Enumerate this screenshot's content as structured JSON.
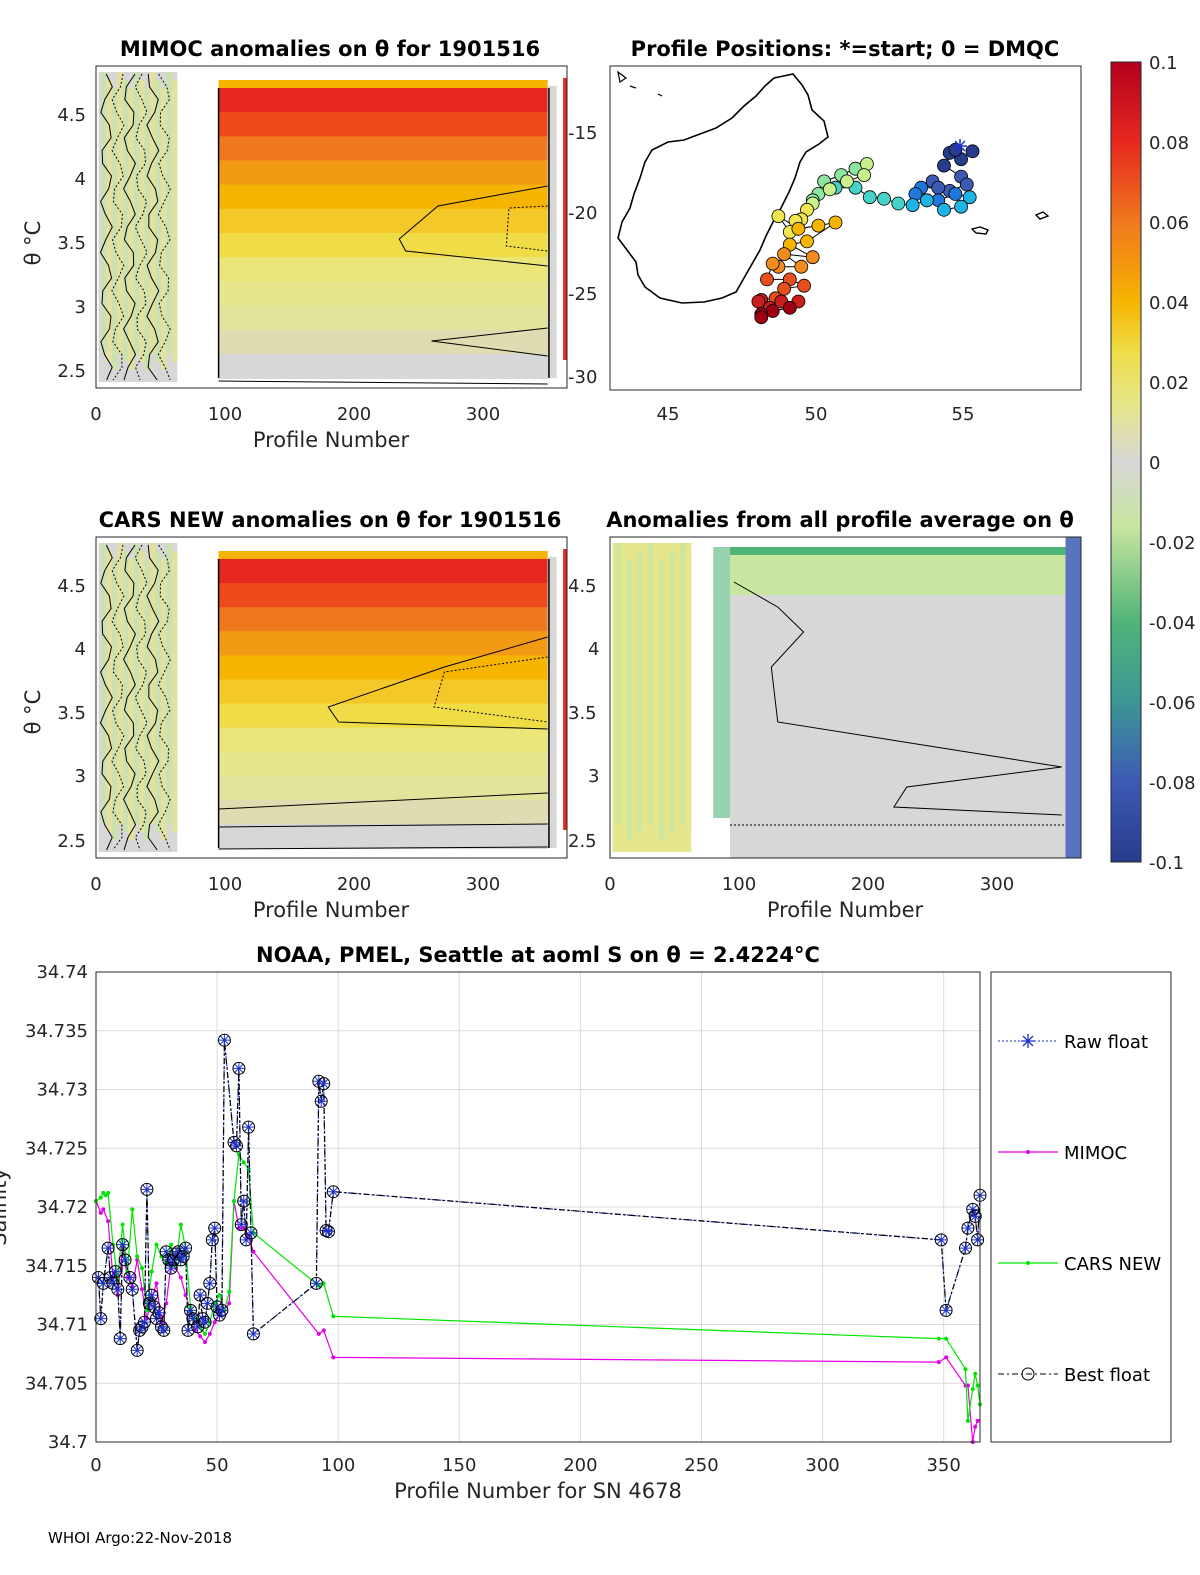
{
  "footer": "WHOI Argo:22-Nov-2018",
  "colorbar": {
    "ticks": [
      "0.1",
      "0.08",
      "0.06",
      "0.04",
      "0.02",
      "0",
      "-0.02",
      "-0.04",
      "-0.06",
      "-0.08",
      "-0.1"
    ],
    "colors": {
      "dark_red": "#b4001e",
      "red": "#e6281e",
      "orange": "#f0781e",
      "amber": "#f5b400",
      "yellow": "#f0dc46",
      "pale_yellow": "#e6e68c",
      "gray": "#d7d7d7",
      "pale_green": "#c8e6a0",
      "green": "#50b478",
      "teal": "#3c9696",
      "blue": "#3c5ab4",
      "navy": "#283c8c"
    }
  },
  "chart_data": [
    {
      "id": "mimoc_anomaly",
      "type": "heatmap",
      "title": "MIMOC anomalies on θ  for 1901516",
      "xlabel": "Profile Number",
      "ylabel": "θ °C",
      "xticks": [
        "0",
        "100",
        "200",
        "300"
      ],
      "yticks": [
        "4.5",
        "4",
        "3.5",
        "3",
        "2.5"
      ],
      "xlim": [
        0,
        365
      ],
      "ylim": [
        2.35,
        4.82
      ]
    },
    {
      "id": "profile_positions",
      "type": "scatter",
      "title": "Profile Positions: *=start; 0 = DMQC",
      "xticks": [
        "45",
        "50",
        "55"
      ],
      "yticks": [
        "-15",
        "-20",
        "-25",
        "-30"
      ],
      "xlim": [
        42.3,
        58.8
      ],
      "ylim": [
        -31,
        -10.5
      ],
      "track_lon": [
        55.0,
        54.6,
        54.2,
        54.4,
        54.0,
        54.6,
        54.8,
        54.2,
        53.6,
        53.8,
        53.2,
        53.0,
        53.4,
        53.8,
        54.4,
        54.9,
        54.6,
        54.0,
        53.4,
        52.9,
        52.4,
        51.9,
        51.4,
        50.9,
        50.2,
        49.6,
        49.4,
        49.8,
        50.4,
        50.9,
        51.3,
        51.2,
        50.6,
        50.0,
        49.4,
        49.2,
        49.0,
        48.8,
        48.6,
        48.2,
        48.9,
        49.6,
        50.2,
        49.2,
        48.6,
        49.4,
        48.4,
        49.0,
        48.2,
        48.0,
        47.8,
        48.6,
        49.1,
        48.4,
        48.1,
        47.6,
        47.5,
        47.9,
        48.3,
        48.9,
        48.6,
        48.0,
        47.6,
        47.6
      ],
      "track_lat": [
        -15.9,
        -16.4,
        -16.0,
        -15.8,
        -16.8,
        -17.5,
        -18.0,
        -18.4,
        -17.8,
        -18.2,
        -18.2,
        -18.6,
        -19.0,
        -19.0,
        -18.6,
        -18.8,
        -19.4,
        -19.6,
        -19.0,
        -19.3,
        -19.2,
        -18.9,
        -18.8,
        -18.2,
        -18.2,
        -18.6,
        -19.0,
        -17.8,
        -17.4,
        -17.0,
        -16.7,
        -17.4,
        -17.8,
        -18.3,
        -19.2,
        -19.6,
        -20.2,
        -20.3,
        -21.0,
        -20.0,
        -20.8,
        -20.6,
        -20.4,
        -21.6,
        -21.8,
        -22.6,
        -22.4,
        -23.2,
        -23.2,
        -23.0,
        -24.0,
        -24.0,
        -24.4,
        -24.6,
        -25.2,
        -25.3,
        -25.4,
        -25.8,
        -25.4,
        -25.4,
        -25.8,
        -26.0,
        -26.2,
        -26.4
      ]
    },
    {
      "id": "cars_anomaly",
      "type": "heatmap",
      "title": "CARS NEW anomalies on θ for 1901516",
      "xlabel": "Profile Number",
      "ylabel": "θ °C",
      "xticks": [
        "0",
        "100",
        "200",
        "300"
      ],
      "yticks": [
        "4.5",
        "4",
        "3.5",
        "3",
        "2.5"
      ],
      "xlim": [
        0,
        365
      ],
      "ylim": [
        2.35,
        4.82
      ]
    },
    {
      "id": "profile_average_anomaly",
      "type": "heatmap",
      "title": "Anomalies from all profile average on θ",
      "xlabel": "Profile Number",
      "xticks": [
        "0",
        "100",
        "200",
        "300"
      ],
      "yticks": [
        "4.5",
        "4",
        "3.5",
        "3",
        "2.5"
      ],
      "xlim": [
        0,
        365
      ],
      "ylim": [
        2.35,
        4.82
      ]
    },
    {
      "id": "salinity_theta",
      "type": "line",
      "title": "NOAA, PMEL, Seattle at aoml S on θ = 2.4224°C",
      "xlabel": "Profile Number for SN 4678",
      "ylabel": "Salinity",
      "xticks": [
        "0",
        "50",
        "100",
        "150",
        "200",
        "250",
        "300",
        "350"
      ],
      "yticks": [
        "34.74",
        "34.735",
        "34.73",
        "34.725",
        "34.72",
        "34.715",
        "34.71",
        "34.705",
        "34.7"
      ],
      "xlim": [
        0,
        365
      ],
      "ylim": [
        34.7,
        34.74
      ],
      "legend": [
        "Raw float",
        "MIMOC",
        "CARS NEW",
        "Best float"
      ],
      "series": [
        {
          "name": "Best float",
          "x": [
            1,
            2,
            3,
            5,
            6,
            7,
            8,
            9,
            10,
            11,
            12,
            14,
            15,
            17,
            18,
            19,
            20,
            21,
            22,
            23,
            24,
            25,
            26,
            27,
            28,
            29,
            30,
            31,
            32,
            33,
            34,
            35,
            36,
            37,
            38,
            39,
            40,
            42,
            43,
            44,
            45,
            46,
            47,
            48,
            49,
            50,
            51,
            52,
            53,
            57,
            58,
            59,
            60,
            61,
            62,
            63,
            64,
            65,
            91,
            92,
            93,
            94,
            95,
            96,
            98,
            349,
            351,
            359,
            360,
            362,
            363,
            364,
            365
          ],
          "y": [
            34.714,
            34.7105,
            34.7135,
            34.7165,
            34.714,
            34.7135,
            34.7145,
            34.713,
            34.7088,
            34.7168,
            34.7155,
            34.714,
            34.713,
            34.7078,
            34.7095,
            34.7098,
            34.7102,
            34.7215,
            34.7118,
            34.7125,
            34.7115,
            34.7105,
            34.711,
            34.7098,
            34.7095,
            34.7162,
            34.7155,
            34.7148,
            34.7155,
            34.716,
            34.7162,
            34.7155,
            34.7158,
            34.7165,
            34.7095,
            34.7112,
            34.7105,
            34.7098,
            34.7125,
            34.7105,
            34.7102,
            34.7118,
            34.7135,
            34.7172,
            34.7182,
            34.7115,
            34.7108,
            34.7112,
            34.7342,
            34.7255,
            34.7252,
            34.7318,
            34.7185,
            34.7205,
            34.7172,
            34.7268,
            34.7178,
            34.7092,
            34.7135,
            34.7307,
            34.729,
            34.7305,
            34.718,
            34.7179,
            34.7213,
            34.7172,
            34.7112,
            34.7165,
            34.7182,
            34.7198,
            34.7192,
            34.7172,
            34.721
          ]
        },
        {
          "name": "MIMOC",
          "x": [
            0,
            2,
            3,
            5,
            7,
            9,
            11,
            13,
            15,
            17,
            19,
            21,
            23,
            25,
            27,
            29,
            31,
            33,
            35,
            37,
            39,
            41,
            43,
            45,
            47,
            49,
            51,
            53,
            55,
            57,
            59,
            61,
            63,
            65,
            92,
            94,
            98,
            348,
            351,
            359,
            360,
            362,
            363,
            364
          ],
          "y": [
            34.7205,
            34.7195,
            34.7198,
            34.7188,
            34.714,
            34.7125,
            34.7165,
            34.714,
            34.7132,
            34.7155,
            34.713,
            34.7105,
            34.7122,
            34.7135,
            34.7102,
            34.7118,
            34.7152,
            34.7148,
            34.714,
            34.7125,
            34.7112,
            34.7095,
            34.709,
            34.7085,
            34.7092,
            34.7102,
            34.7108,
            34.7112,
            34.7118,
            34.7205,
            34.7182,
            34.7182,
            34.7175,
            34.7162,
            34.7092,
            34.7095,
            34.7072,
            34.7068,
            34.7072,
            34.7048,
            34.7048,
            34.7,
            34.7013,
            34.7018
          ]
        },
        {
          "name": "CARS NEW",
          "x": [
            0,
            2,
            3,
            4,
            5,
            7,
            9,
            11,
            13,
            15,
            17,
            19,
            21,
            23,
            25,
            27,
            29,
            31,
            33,
            35,
            37,
            39,
            41,
            43,
            45,
            47,
            49,
            51,
            53,
            55,
            57,
            59,
            61,
            63,
            65,
            92,
            94,
            98,
            348,
            351,
            359,
            360,
            362,
            363,
            364,
            365
          ],
          "y": [
            34.7205,
            34.7208,
            34.7212,
            34.721,
            34.7212,
            34.7168,
            34.7138,
            34.7185,
            34.7145,
            34.7198,
            34.7158,
            34.7148,
            34.7112,
            34.7145,
            34.7168,
            34.7158,
            34.7152,
            34.7168,
            34.715,
            34.7185,
            34.7165,
            34.7115,
            34.7105,
            34.7098,
            34.7092,
            34.7102,
            34.7118,
            34.7125,
            34.7112,
            34.7128,
            34.7205,
            34.7245,
            34.7238,
            34.7232,
            34.7178,
            34.7133,
            34.7135,
            34.7107,
            34.7088,
            34.7088,
            34.7062,
            34.7018,
            34.7045,
            34.7058,
            34.7048,
            34.7032
          ]
        }
      ]
    }
  ]
}
